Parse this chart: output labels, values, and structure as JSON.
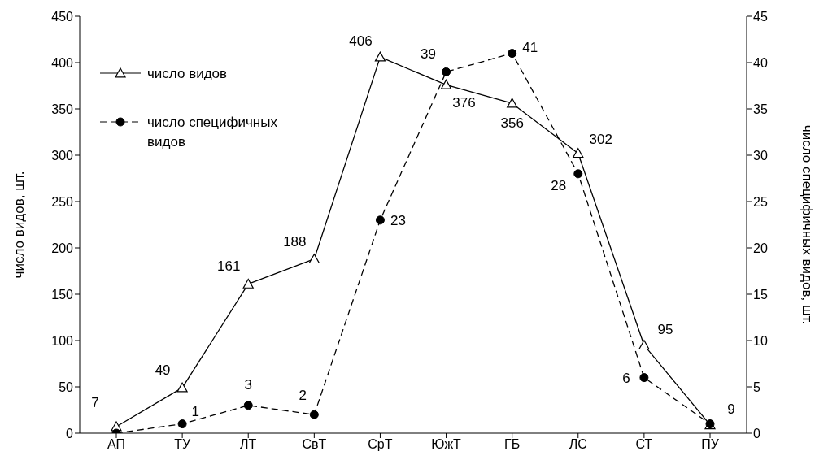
{
  "chart_data": {
    "type": "line",
    "categories": [
      "АП",
      "ТУ",
      "ЛТ",
      "СвТ",
      "СрТ",
      "ЮжТ",
      "ГБ",
      "ЛС",
      "СТ",
      "ПУ"
    ],
    "ylabel": "число видов, шт.",
    "y2label": "число специфичных видов, шт.",
    "ylim": [
      0,
      450
    ],
    "yticks": [
      0,
      50,
      100,
      150,
      200,
      250,
      300,
      350,
      400,
      450
    ],
    "y2lim": [
      0,
      45
    ],
    "y2ticks": [
      0,
      5,
      10,
      15,
      20,
      25,
      30,
      35,
      40,
      45
    ],
    "legend": "top left",
    "series": [
      {
        "name": "число видов",
        "color": "#000000",
        "marker": "triangle",
        "line_style": "solid",
        "values": [
          7,
          49,
          161,
          188,
          406,
          376,
          356,
          302,
          95,
          9
        ],
        "value_labels": [
          "7",
          "49",
          "161",
          "188",
          "406",
          "376",
          "356",
          "302",
          "95",
          "9"
        ]
      },
      {
        "name": "число специфичных видов",
        "color": "#000000",
        "marker": "circle",
        "line_style": "dashed",
        "axis": "y2",
        "values": [
          0,
          1,
          3,
          2,
          23,
          39,
          41,
          28,
          6,
          1
        ],
        "value_labels": [
          null,
          "1",
          "3",
          "2",
          "23",
          "39",
          "41",
          "28",
          "6",
          null
        ]
      }
    ]
  }
}
